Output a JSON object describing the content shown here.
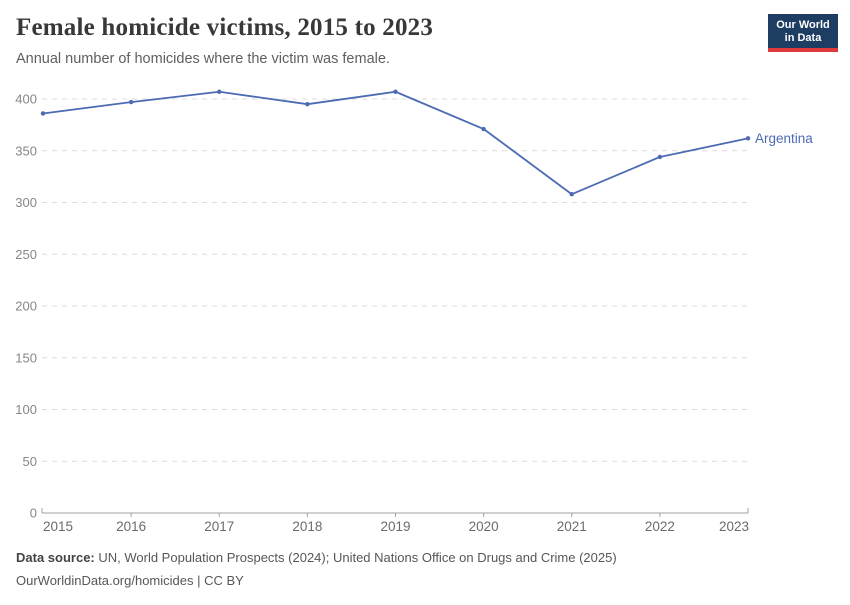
{
  "header": {
    "title": "Female homicide victims, 2015 to 2023",
    "subtitle": "Annual number of homicides where the victim was female.",
    "logo": {
      "line1": "Our World",
      "line2": "in Data"
    }
  },
  "chart_data": {
    "type": "line",
    "title": "Female homicide victims, 2015 to 2023",
    "x": [
      2015,
      2016,
      2017,
      2018,
      2019,
      2020,
      2021,
      2022,
      2023
    ],
    "series": [
      {
        "name": "Argentina",
        "values": [
          386,
          397,
          407,
          395,
          407,
          371,
          308,
          344,
          362
        ],
        "color": "#4c6bb3"
      }
    ],
    "end_label": "Argentina",
    "xlabel": "",
    "ylabel": "",
    "ylim": [
      0,
      400
    ],
    "yticks": [
      0,
      50,
      100,
      150,
      200,
      250,
      300,
      350,
      400
    ],
    "grid": "horizontal-dashed",
    "legend_position": "end-of-line"
  },
  "footer": {
    "source_label": "Data source:",
    "source_text": " UN, World Population Prospects (2024); United Nations Office on Drugs and Crime (2025)",
    "license_line": "OurWorldinData.org/homicides | CC BY"
  },
  "colors": {
    "line": "#4c6bb3",
    "logo_bg": "#1d3d63",
    "logo_accent": "#e0393c",
    "grid": "#dcdcdc",
    "axis": "#a3a3a3"
  }
}
